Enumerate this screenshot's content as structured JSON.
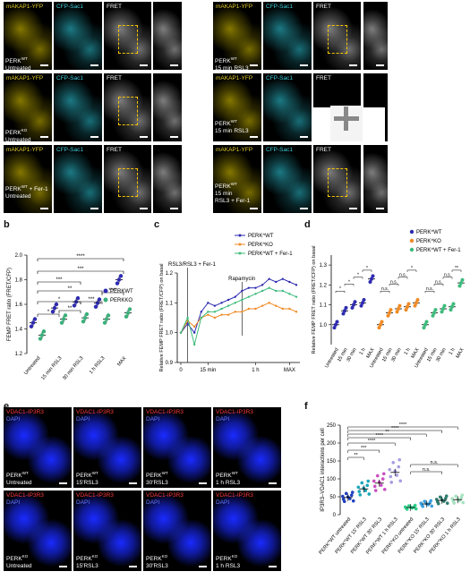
{
  "panel_letters": {
    "a": "a",
    "b": "b",
    "c": "c",
    "d": "d",
    "e": "e",
    "f": "f"
  },
  "panel_a": {
    "channels": [
      "mAKAP1-YFP",
      "CFP-Sac1",
      "FRET"
    ],
    "rows": [
      {
        "left": "PERK^WT|Untreated",
        "right": "PERK^WT|15 min RSL3"
      },
      {
        "left": "PERK^KO|Untreated",
        "right": "PERK^WT|15 min RSL3"
      },
      {
        "left": "PERK^WT + Fer-1|Untreated",
        "right": "PERK^WT|15 min|RSL3 + Fer-1"
      }
    ],
    "row_labels": [
      [
        "PERK",
        "WT",
        "Untreated"
      ],
      [
        "PERK",
        "WT",
        "15 min RSL3"
      ],
      [
        "PERK",
        "KO",
        "Untreated"
      ],
      [
        "PERK",
        "WT",
        "15 min RSL3"
      ],
      [
        "PERK",
        "WT",
        " + Fer-1",
        "Untreated"
      ],
      [
        "PERK",
        "WT",
        "15 min",
        "RSL3 + Fer-1"
      ]
    ]
  },
  "chart_data": [
    {
      "type": "scatter",
      "panel": "b",
      "ylabel": "FEMP FRET ratio (FRET/CFP)",
      "ylim": [
        1.2,
        2.0
      ],
      "yticks": [
        "1.2",
        "1.4",
        "1.6",
        "1.8",
        "2.0"
      ],
      "categories": [
        "Untreated",
        "15 min RSL3",
        "30 min RSL3",
        "1 h RSL3",
        "MAX"
      ],
      "series": [
        {
          "name": "PERK^WT",
          "color": "#2e2bb0",
          "values": [
            1.45,
            1.57,
            1.62,
            1.61,
            1.8
          ]
        },
        {
          "name": "PERK^KO",
          "color": "#3ab07a",
          "values": [
            1.35,
            1.48,
            1.49,
            1.48,
            1.53
          ]
        }
      ],
      "significance": [
        "*",
        "*",
        "**",
        "***",
        "****",
        "**",
        "***",
        "***",
        "****"
      ]
    },
    {
      "type": "line",
      "panel": "c",
      "ylabel": "Relative FEMP FRET ratio (FRET/CFP) on basal",
      "ylim": [
        0.9,
        1.2
      ],
      "yticks": [
        "0.9",
        "1.0",
        "1.1",
        "1.2"
      ],
      "xticks": [
        "0",
        "15 min",
        "1 h",
        "MAX"
      ],
      "annotations": [
        "RSL3/RSL3 + Fer-1",
        "Rapamycin"
      ],
      "series": [
        {
          "name": "PERK^WT",
          "color": "#2e2bb0",
          "values": [
            1.0,
            1.03,
            1.0,
            1.07,
            1.1,
            1.09,
            1.1,
            1.11,
            1.12,
            1.14,
            1.15,
            1.15,
            1.16,
            1.18,
            1.17,
            1.18,
            1.17,
            1.16
          ]
        },
        {
          "name": "PERK^KO",
          "color": "#f08a24",
          "values": [
            1.0,
            1.04,
            1.02,
            1.05,
            1.06,
            1.05,
            1.06,
            1.06,
            1.07,
            1.07,
            1.08,
            1.08,
            1.09,
            1.1,
            1.09,
            1.08,
            1.08,
            1.07
          ]
        },
        {
          "name": "PERK^WT + Fer-1",
          "color": "#3dbb7c",
          "values": [
            1.0,
            1.05,
            0.96,
            1.05,
            1.07,
            1.07,
            1.08,
            1.09,
            1.1,
            1.11,
            1.12,
            1.13,
            1.14,
            1.15,
            1.14,
            1.14,
            1.13,
            1.12
          ]
        }
      ]
    },
    {
      "type": "scatter",
      "panel": "d",
      "ylabel": "Relative FEMP FRET ratio (FRET/CFP) on basal",
      "ylim": [
        0.9,
        1.35
      ],
      "yticks": [
        "1.0",
        "1.1",
        "1.2",
        "1.3"
      ],
      "categories": [
        "Untreated",
        "15 min",
        "30 min",
        "1 h",
        "MAX",
        "Untreated",
        "15 min",
        "30 min",
        "1 h",
        "MAX",
        "Untreated",
        "15 min",
        "30 min",
        "1 h",
        "MAX"
      ],
      "series": [
        {
          "name": "PERK^WT",
          "color": "#2e2bb0",
          "values": [
            1.0,
            1.07,
            1.1,
            1.11,
            1.23
          ]
        },
        {
          "name": "PERK^KO",
          "color": "#f08a24",
          "values": [
            1.0,
            1.06,
            1.08,
            1.09,
            1.11
          ]
        },
        {
          "name": "PERK^WT + Fer-1",
          "color": "#3dbb7c",
          "values": [
            1.0,
            1.06,
            1.08,
            1.09,
            1.21
          ]
        }
      ],
      "significance": [
        "*",
        "*",
        "*",
        "*",
        "n.s.",
        "n.s.",
        "n.s.",
        "*",
        "n.s.",
        "n.s.",
        "n.s.",
        "**"
      ]
    },
    {
      "type": "scatter",
      "panel": "f",
      "ylabel": "IP3R3–VDAC1 interactions per cell",
      "ylim": [
        0,
        250
      ],
      "yticks": [
        "0",
        "50",
        "100",
        "150",
        "200",
        "250"
      ],
      "categories": [
        "PERK^WT untreated",
        "PERK^WT 15′ RSL3",
        "PERK^WT 30′ RSL3",
        "PERK^WT 1 h RSL3",
        "PERK^KO untreated",
        "PERK^KO 15′ RSL3",
        "PERK^KO 30′ RSL3",
        "PERK^KO 1 h RSL3"
      ],
      "means": [
        48,
        72,
        88,
        118,
        20,
        30,
        40,
        42
      ],
      "colors": [
        "#1f3fbf",
        "#1aa6b7",
        "#c94fc0",
        "#a99ce0",
        "#2fd08a",
        "#3aa0e0",
        "#2e7d6f",
        "#a6e2c0"
      ],
      "significance": [
        "**",
        "***",
        "****",
        "****",
        "**",
        "****",
        "****",
        "n.s.",
        "n.s."
      ]
    }
  ],
  "panel_e": {
    "channels": [
      "VDAC1-IP3R3",
      "DAPI"
    ],
    "tiles": [
      [
        "PERK",
        "WT",
        "Untreated"
      ],
      [
        "PERK",
        "WT",
        "15′RSL3"
      ],
      [
        "PERK",
        "WT",
        "30′RSL3"
      ],
      [
        "PERK",
        "WT",
        "1 h RSL3"
      ],
      [
        "PERK",
        "KO",
        "Untreated"
      ],
      [
        "PERK",
        "KO",
        "15′RSL3"
      ],
      [
        "PERK",
        "KO",
        "30′RSL3"
      ],
      [
        "PERK",
        "KO",
        "1 h RSL3"
      ]
    ]
  },
  "legend_b": [
    "PERK",
    "WT",
    "PERK",
    "KO"
  ]
}
